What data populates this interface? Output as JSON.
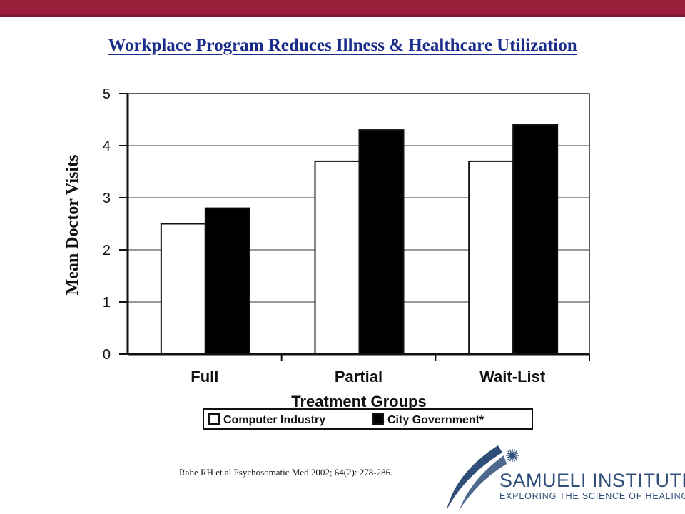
{
  "slide": {
    "title": "Workplace Program Reduces Illness & Healthcare Utilization",
    "citation": "Rahe RH et al Psychosomatic Med 2002; 64(2): 278-286.",
    "colors": {
      "top_bar": "#9a1f3a",
      "title": "#1b2d8a",
      "logo": "#2f4e7a"
    }
  },
  "logo": {
    "name": "SAMUELI INSTITUTE",
    "tagline": "EXPLORING THE SCIENCE OF HEALING",
    "icon": "starburst-icon"
  },
  "chart_data": {
    "type": "bar",
    "title": "",
    "xlabel": "Treatment Groups",
    "ylabel": "Mean Doctor Visits",
    "categories": [
      "Full",
      "Partial",
      "Wait-List"
    ],
    "series": [
      {
        "name": "Computer Industry",
        "values": [
          2.5,
          3.7,
          3.7
        ],
        "color": "#ffffff"
      },
      {
        "name": "City Government*",
        "values": [
          2.8,
          4.3,
          4.4
        ],
        "color": "#000000"
      }
    ],
    "ylim": [
      0,
      5
    ],
    "yticks": [
      0,
      1,
      2,
      3,
      4,
      5
    ],
    "grid": true,
    "legend_position": "bottom"
  }
}
